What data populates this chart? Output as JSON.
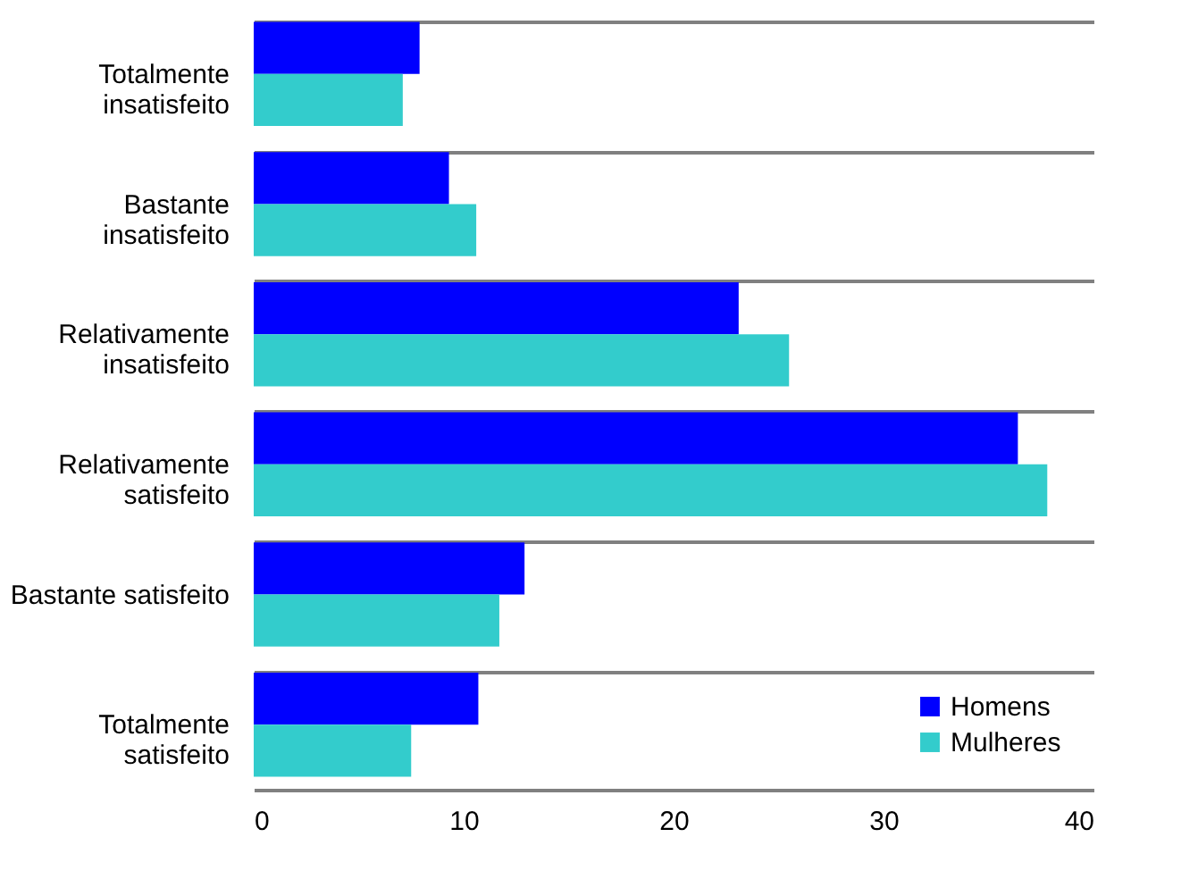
{
  "chart_data": {
    "type": "bar",
    "orientation": "horizontal",
    "categories": [
      "Totalmente insatisfeito",
      "Bastante insatisfeito",
      "Relativamente insatisfeito",
      "Relativamente satisfeito",
      "Bastante satisfeito",
      "Totalmente satisfeito"
    ],
    "series": [
      {
        "name": "Homens",
        "color": "#0000ff",
        "values": [
          7.9,
          9.3,
          23.1,
          36.4,
          12.9,
          10.7
        ]
      },
      {
        "name": "Mulheres",
        "color": "#33cccc",
        "values": [
          7.1,
          10.6,
          25.5,
          37.8,
          11.7,
          7.5
        ]
      }
    ],
    "xlim": [
      0,
      40
    ],
    "xticks": [
      0,
      10,
      20,
      30,
      40
    ],
    "grid": "y",
    "legend": "bottom right"
  }
}
